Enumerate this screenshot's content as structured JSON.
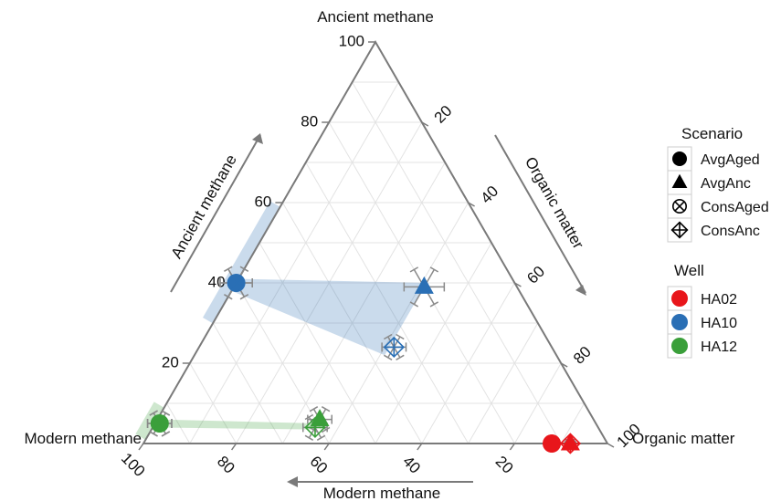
{
  "chart_data": {
    "type": "ternary-scatter",
    "corners": {
      "top": "Ancient methane",
      "left": "Modern methane",
      "right": "Organic matter"
    },
    "axis_titles": {
      "left_side": "Ancient methane",
      "right_side": "Organic matter",
      "bottom": "Modern methane"
    },
    "ticks": {
      "ancient": [
        "20",
        "40",
        "60",
        "80",
        "100"
      ],
      "organic": [
        "20",
        "40",
        "60",
        "80",
        "100"
      ],
      "modern": [
        "20",
        "40",
        "60",
        "80",
        "100"
      ]
    },
    "grid": true,
    "legend": {
      "placement": "right",
      "scenario": {
        "title": "Scenario",
        "items": [
          {
            "label": "AvgAged",
            "marker": "circle"
          },
          {
            "label": "AvgAnc",
            "marker": "triangle"
          },
          {
            "label": "ConsAged",
            "marker": "circle-x"
          },
          {
            "label": "ConsAnc",
            "marker": "diamond-plus"
          }
        ]
      },
      "well": {
        "title": "Well",
        "items": [
          {
            "label": "HA02",
            "color": "#e8161b"
          },
          {
            "label": "HA10",
            "color": "#2a6fb5"
          },
          {
            "label": "HA12",
            "color": "#3a9f3a"
          }
        ]
      }
    },
    "colors": {
      "HA02": "#e8161b",
      "HA10": "#2a6fb5",
      "HA12": "#3a9f3a"
    },
    "points": [
      {
        "well": "HA10",
        "scenario": "AvgAged",
        "ancient": 40,
        "organic": 0,
        "modern": 60,
        "err": 4
      },
      {
        "well": "HA10",
        "scenario": "ConsAged",
        "ancient": 40,
        "organic": 0,
        "modern": 60,
        "err": 4
      },
      {
        "well": "HA10",
        "scenario": "AvgAnc",
        "ancient": 39,
        "organic": 41,
        "modern": 20,
        "err": 5
      },
      {
        "well": "HA10",
        "scenario": "ConsAnc",
        "ancient": 24,
        "organic": 42,
        "modern": 34,
        "err": 3
      },
      {
        "well": "HA12",
        "scenario": "AvgAged",
        "ancient": 5,
        "organic": 1,
        "modern": 94,
        "err": 3
      },
      {
        "well": "HA12",
        "scenario": "ConsAged",
        "ancient": 5,
        "organic": 1,
        "modern": 94,
        "err": 3
      },
      {
        "well": "HA12",
        "scenario": "AvgAnc",
        "ancient": 6,
        "organic": 35,
        "modern": 59,
        "err": 3
      },
      {
        "well": "HA12",
        "scenario": "ConsAnc",
        "ancient": 4,
        "organic": 35,
        "modern": 61,
        "err": 3
      },
      {
        "well": "HA02",
        "scenario": "AvgAged",
        "ancient": 0,
        "organic": 88,
        "modern": 12,
        "err": 1
      },
      {
        "well": "HA02",
        "scenario": "ConsAged",
        "ancient": 0,
        "organic": 88,
        "modern": 12,
        "err": 1
      },
      {
        "well": "HA02",
        "scenario": "AvgAnc",
        "ancient": 0,
        "organic": 92,
        "modern": 8,
        "err": 1
      },
      {
        "well": "HA02",
        "scenario": "ConsAnc",
        "ancient": 0,
        "organic": 92,
        "modern": 8,
        "err": 1
      }
    ],
    "shaded_regions": [
      {
        "well": "HA10",
        "vertices": [
          {
            "ancient": 41,
            "organic": 0,
            "modern": 59
          },
          {
            "ancient": 40,
            "organic": 41,
            "modern": 19
          },
          {
            "ancient": 38,
            "organic": 41,
            "modern": 21
          },
          {
            "ancient": 22,
            "organic": 41,
            "modern": 37
          },
          {
            "ancient": 38,
            "organic": 0,
            "modern": 62
          }
        ]
      },
      {
        "well": "HA12",
        "vertices": [
          {
            "ancient": 6,
            "organic": 0,
            "modern": 94
          },
          {
            "ancient": 5,
            "organic": 35,
            "modern": 60
          },
          {
            "ancient": 3.5,
            "organic": 35,
            "modern": 61.5
          },
          {
            "ancient": 4,
            "organic": 0,
            "modern": 96
          }
        ]
      }
    ],
    "edge_bands": [
      {
        "well": "HA10",
        "from": {
          "ancient": 59,
          "organic": 0,
          "modern": 41
        },
        "to": {
          "ancient": 30,
          "organic": 0,
          "modern": 70
        }
      },
      {
        "well": "HA12",
        "from": {
          "ancient": 9,
          "organic": 0,
          "modern": 91
        },
        "to": {
          "ancient": 1,
          "organic": 0,
          "modern": 99
        }
      }
    ]
  }
}
